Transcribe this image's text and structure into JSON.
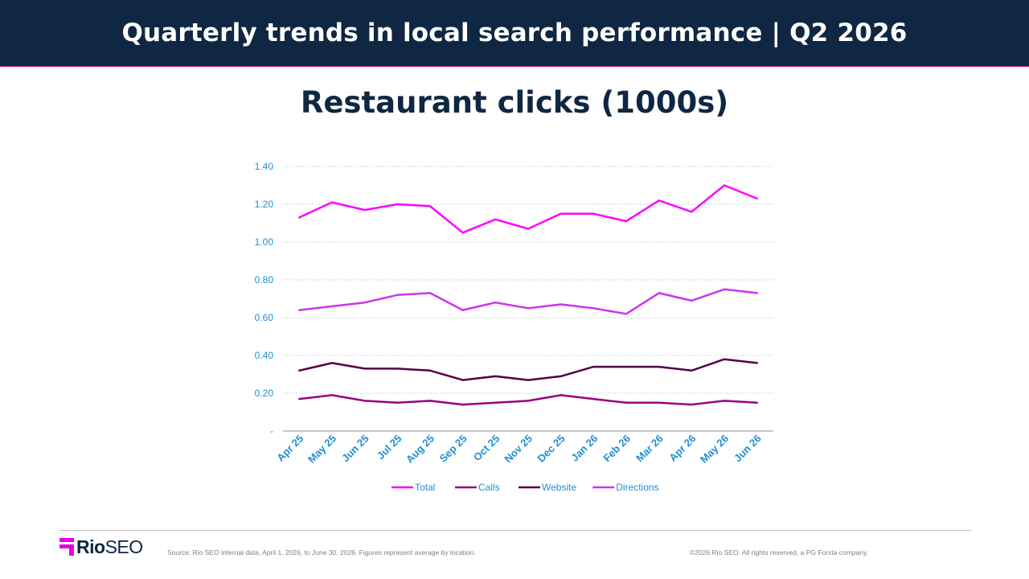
{
  "header": {
    "title": "Quarterly trends in local search performance  |  Q2 2026"
  },
  "chart_data": {
    "type": "line",
    "title": "Restaurant clicks (1000s)",
    "xlabel": "",
    "ylabel": "",
    "ylim": [
      0,
      1.4
    ],
    "y_ticks": [
      0,
      0.2,
      0.4,
      0.6,
      0.8,
      1.0,
      1.2,
      1.4
    ],
    "y_tick_labels": [
      "-",
      "0.20",
      "0.40",
      "0.60",
      "0.80",
      "1.00",
      "1.20",
      "1.40"
    ],
    "grid": true,
    "legend": "bottom",
    "categories": [
      "Apr 25",
      "May 25",
      "Jun 25",
      "Jul 25",
      "Aug 25",
      "Sep 25",
      "Oct 25",
      "Nov 25",
      "Dec 25",
      "Jan 26",
      "Feb 26",
      "Mar 26",
      "Apr 26",
      "May 26",
      "Jun 26"
    ],
    "series": [
      {
        "name": "Total",
        "color": "#ff00ff",
        "values": [
          1.13,
          1.21,
          1.17,
          1.2,
          1.19,
          1.05,
          1.12,
          1.07,
          1.15,
          1.15,
          1.11,
          1.22,
          1.16,
          1.3,
          1.23
        ]
      },
      {
        "name": "Calls",
        "color": "#99007f",
        "values": [
          0.17,
          0.19,
          0.16,
          0.15,
          0.16,
          0.14,
          0.15,
          0.16,
          0.19,
          0.17,
          0.15,
          0.15,
          0.14,
          0.16,
          0.15
        ]
      },
      {
        "name": "Website",
        "color": "#520047",
        "values": [
          0.32,
          0.36,
          0.33,
          0.33,
          0.32,
          0.27,
          0.29,
          0.27,
          0.29,
          0.34,
          0.34,
          0.34,
          0.32,
          0.38,
          0.36
        ]
      },
      {
        "name": "Directions",
        "color": "#cc33ee",
        "values": [
          0.64,
          0.66,
          0.68,
          0.72,
          0.73,
          0.64,
          0.68,
          0.65,
          0.67,
          0.65,
          0.62,
          0.73,
          0.69,
          0.75,
          0.73
        ]
      }
    ]
  },
  "footer": {
    "logo_bold": "Rio",
    "logo_light": "SEO",
    "source": "Source: Rio SEO internal data, April 1, 2026, to June 30, 2026. Figures represent average by location.",
    "copyright": "©2026 Rio SEO. All rights reserved, a PG Forsta company."
  }
}
